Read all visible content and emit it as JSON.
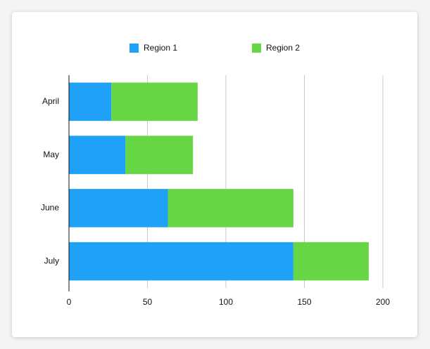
{
  "chart_data": {
    "type": "bar",
    "orientation": "horizontal",
    "stacked": true,
    "categories": [
      "April",
      "May",
      "June",
      "July"
    ],
    "series": [
      {
        "name": "Region 1",
        "color": "#1ea1f7",
        "values": [
          27,
          36,
          63,
          143
        ]
      },
      {
        "name": "Region 2",
        "color": "#66d645",
        "values": [
          55,
          43,
          80,
          48
        ]
      }
    ],
    "xlim": [
      0,
      200
    ],
    "xticks": [
      0,
      50,
      100,
      150,
      200
    ],
    "grid": true,
    "legend": "top"
  }
}
